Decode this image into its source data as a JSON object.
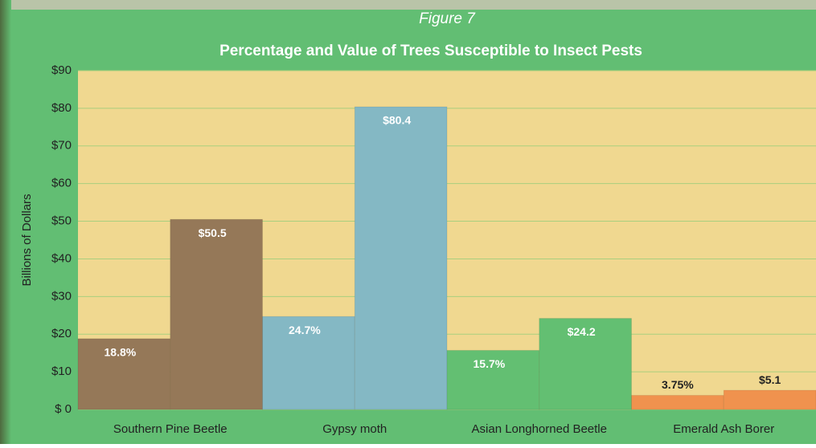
{
  "chart_data": {
    "type": "bar",
    "figure_label": "Figure 7",
    "title": "Percentage and Value of Trees Susceptible to Insect Pests",
    "ylabel": "Billions of Dollars",
    "categories": [
      "Southern Pine Beetle",
      "Gypsy moth",
      "Asian Longhorned Beetle",
      "Emerald Ash Borer"
    ],
    "colors": [
      "#957858",
      "#84b8c4",
      "#63bf72",
      "#f0924e"
    ],
    "series": [
      {
        "values": [
          18.8,
          24.7,
          15.7,
          3.75
        ],
        "value_labels": [
          "18.8%",
          "24.7%",
          "15.7%",
          "3.75%"
        ]
      },
      {
        "values": [
          50.5,
          80.4,
          24.2,
          5.1
        ],
        "value_labels": [
          "$50.5",
          "$80.4",
          "$24.2",
          "$5.1"
        ]
      }
    ],
    "ylim": [
      0,
      90
    ],
    "yticks": [
      {
        "value": 0,
        "label": "$ 0"
      },
      {
        "value": 10,
        "label": "$10"
      },
      {
        "value": 20,
        "label": "$20"
      },
      {
        "value": 30,
        "label": "$30"
      },
      {
        "value": 40,
        "label": "$40"
      },
      {
        "value": 50,
        "label": "$50"
      },
      {
        "value": 60,
        "label": "$60"
      },
      {
        "value": 70,
        "label": "$70"
      },
      {
        "value": 80,
        "label": "$80"
      },
      {
        "value": 90,
        "label": "$90"
      }
    ],
    "grid": true
  }
}
